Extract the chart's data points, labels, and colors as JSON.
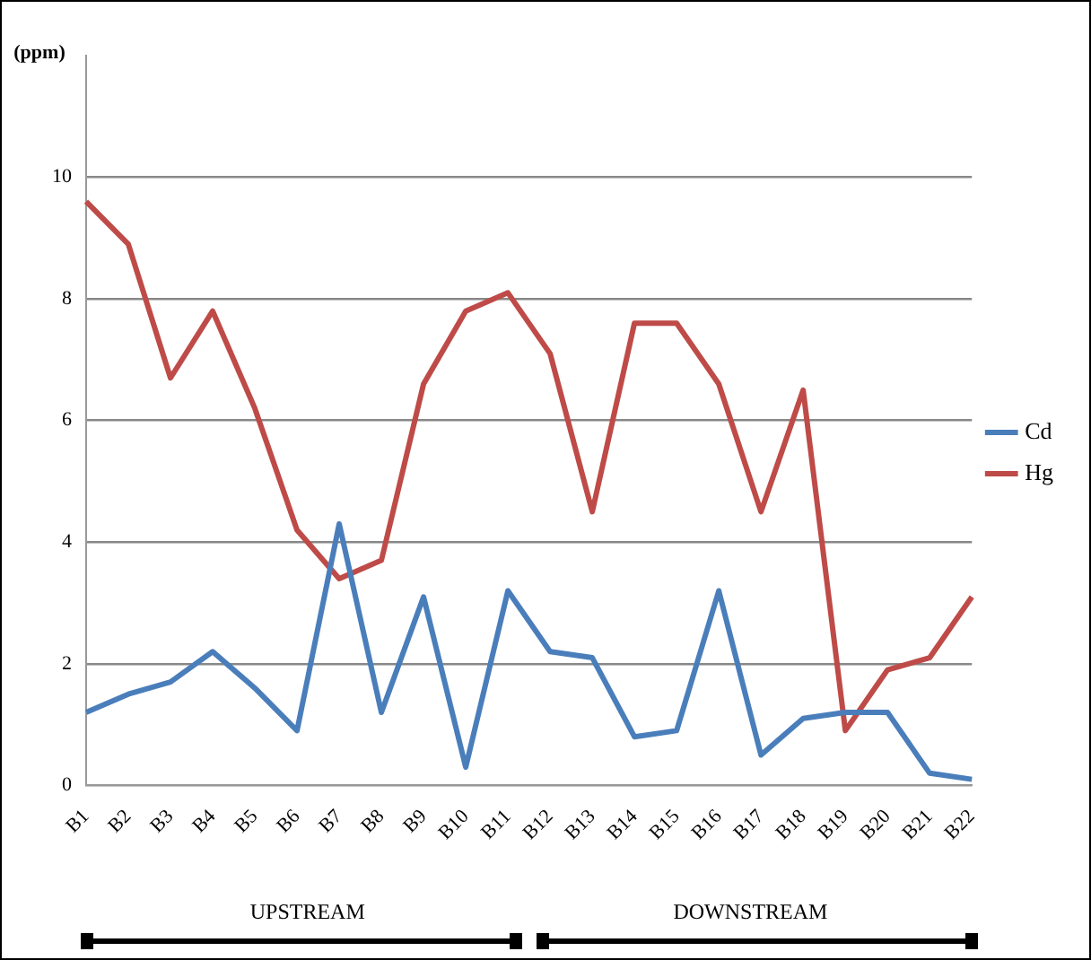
{
  "chart_data": {
    "type": "line",
    "ylabel": "(ppm)",
    "categories": [
      "B1",
      "B2",
      "B3",
      "B4",
      "B5",
      "B6",
      "B7",
      "B8",
      "B9",
      "B10",
      "B11",
      "B12",
      "B13",
      "B14",
      "B15",
      "B16",
      "B17",
      "B18",
      "B19",
      "B20",
      "B21",
      "B22"
    ],
    "series": [
      {
        "name": "Cd",
        "color": "#4a7ebb",
        "values": [
          1.2,
          1.5,
          1.7,
          2.2,
          1.6,
          0.9,
          4.3,
          1.2,
          3.1,
          0.3,
          3.2,
          2.2,
          2.1,
          0.8,
          0.9,
          3.2,
          0.5,
          1.1,
          1.2,
          1.2,
          0.2,
          0.1
        ]
      },
      {
        "name": "Hg",
        "color": "#be4b48",
        "values": [
          9.6,
          8.9,
          6.7,
          7.8,
          6.2,
          4.2,
          3.4,
          3.7,
          6.6,
          7.8,
          8.1,
          7.1,
          4.5,
          7.6,
          7.6,
          6.6,
          4.5,
          6.5,
          0.9,
          1.9,
          2.1,
          3.1
        ]
      }
    ],
    "ylim": [
      0,
      12
    ],
    "yticks": [
      0,
      2,
      4,
      6,
      8,
      10
    ],
    "grid": "y",
    "legend": "right",
    "marker": "none",
    "line_style": "solid",
    "annotations": [
      "UPSTREAM",
      "DOWNSTREAM"
    ]
  }
}
